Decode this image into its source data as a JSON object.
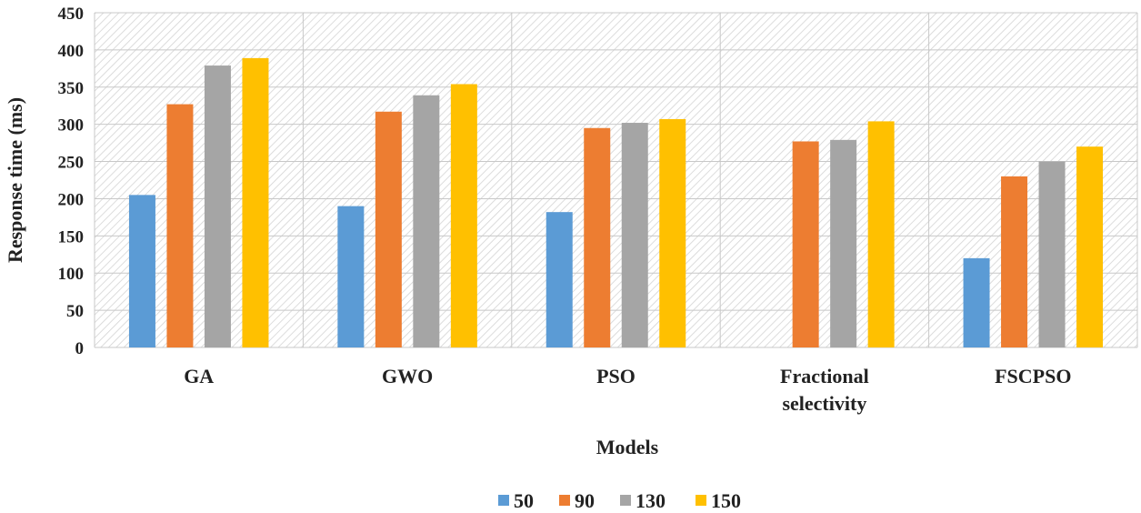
{
  "chart_data": {
    "type": "bar",
    "categories": [
      [
        "GA"
      ],
      [
        "GWO"
      ],
      [
        "PSO"
      ],
      [
        "Fractional",
        "selectivity"
      ],
      [
        "FSCPSO"
      ]
    ],
    "series": [
      {
        "name": "50",
        "color": "#5b9bd5",
        "values": [
          205,
          190,
          182,
          0,
          120
        ]
      },
      {
        "name": "90",
        "color": "#ed7d31",
        "values": [
          327,
          317,
          295,
          277,
          230
        ]
      },
      {
        "name": "130",
        "color": "#a5a5a5",
        "values": [
          379,
          339,
          302,
          279,
          250
        ]
      },
      {
        "name": "150",
        "color": "#ffc000",
        "values": [
          389,
          354,
          307,
          304,
          270
        ]
      }
    ],
    "xlabel": "Models",
    "ylabel": "Response time (ms)",
    "ylim": [
      0,
      450
    ],
    "yticks": [
      0,
      50,
      100,
      150,
      200,
      250,
      300,
      350,
      400,
      450
    ],
    "grid": true,
    "legend_position": "bottom"
  }
}
